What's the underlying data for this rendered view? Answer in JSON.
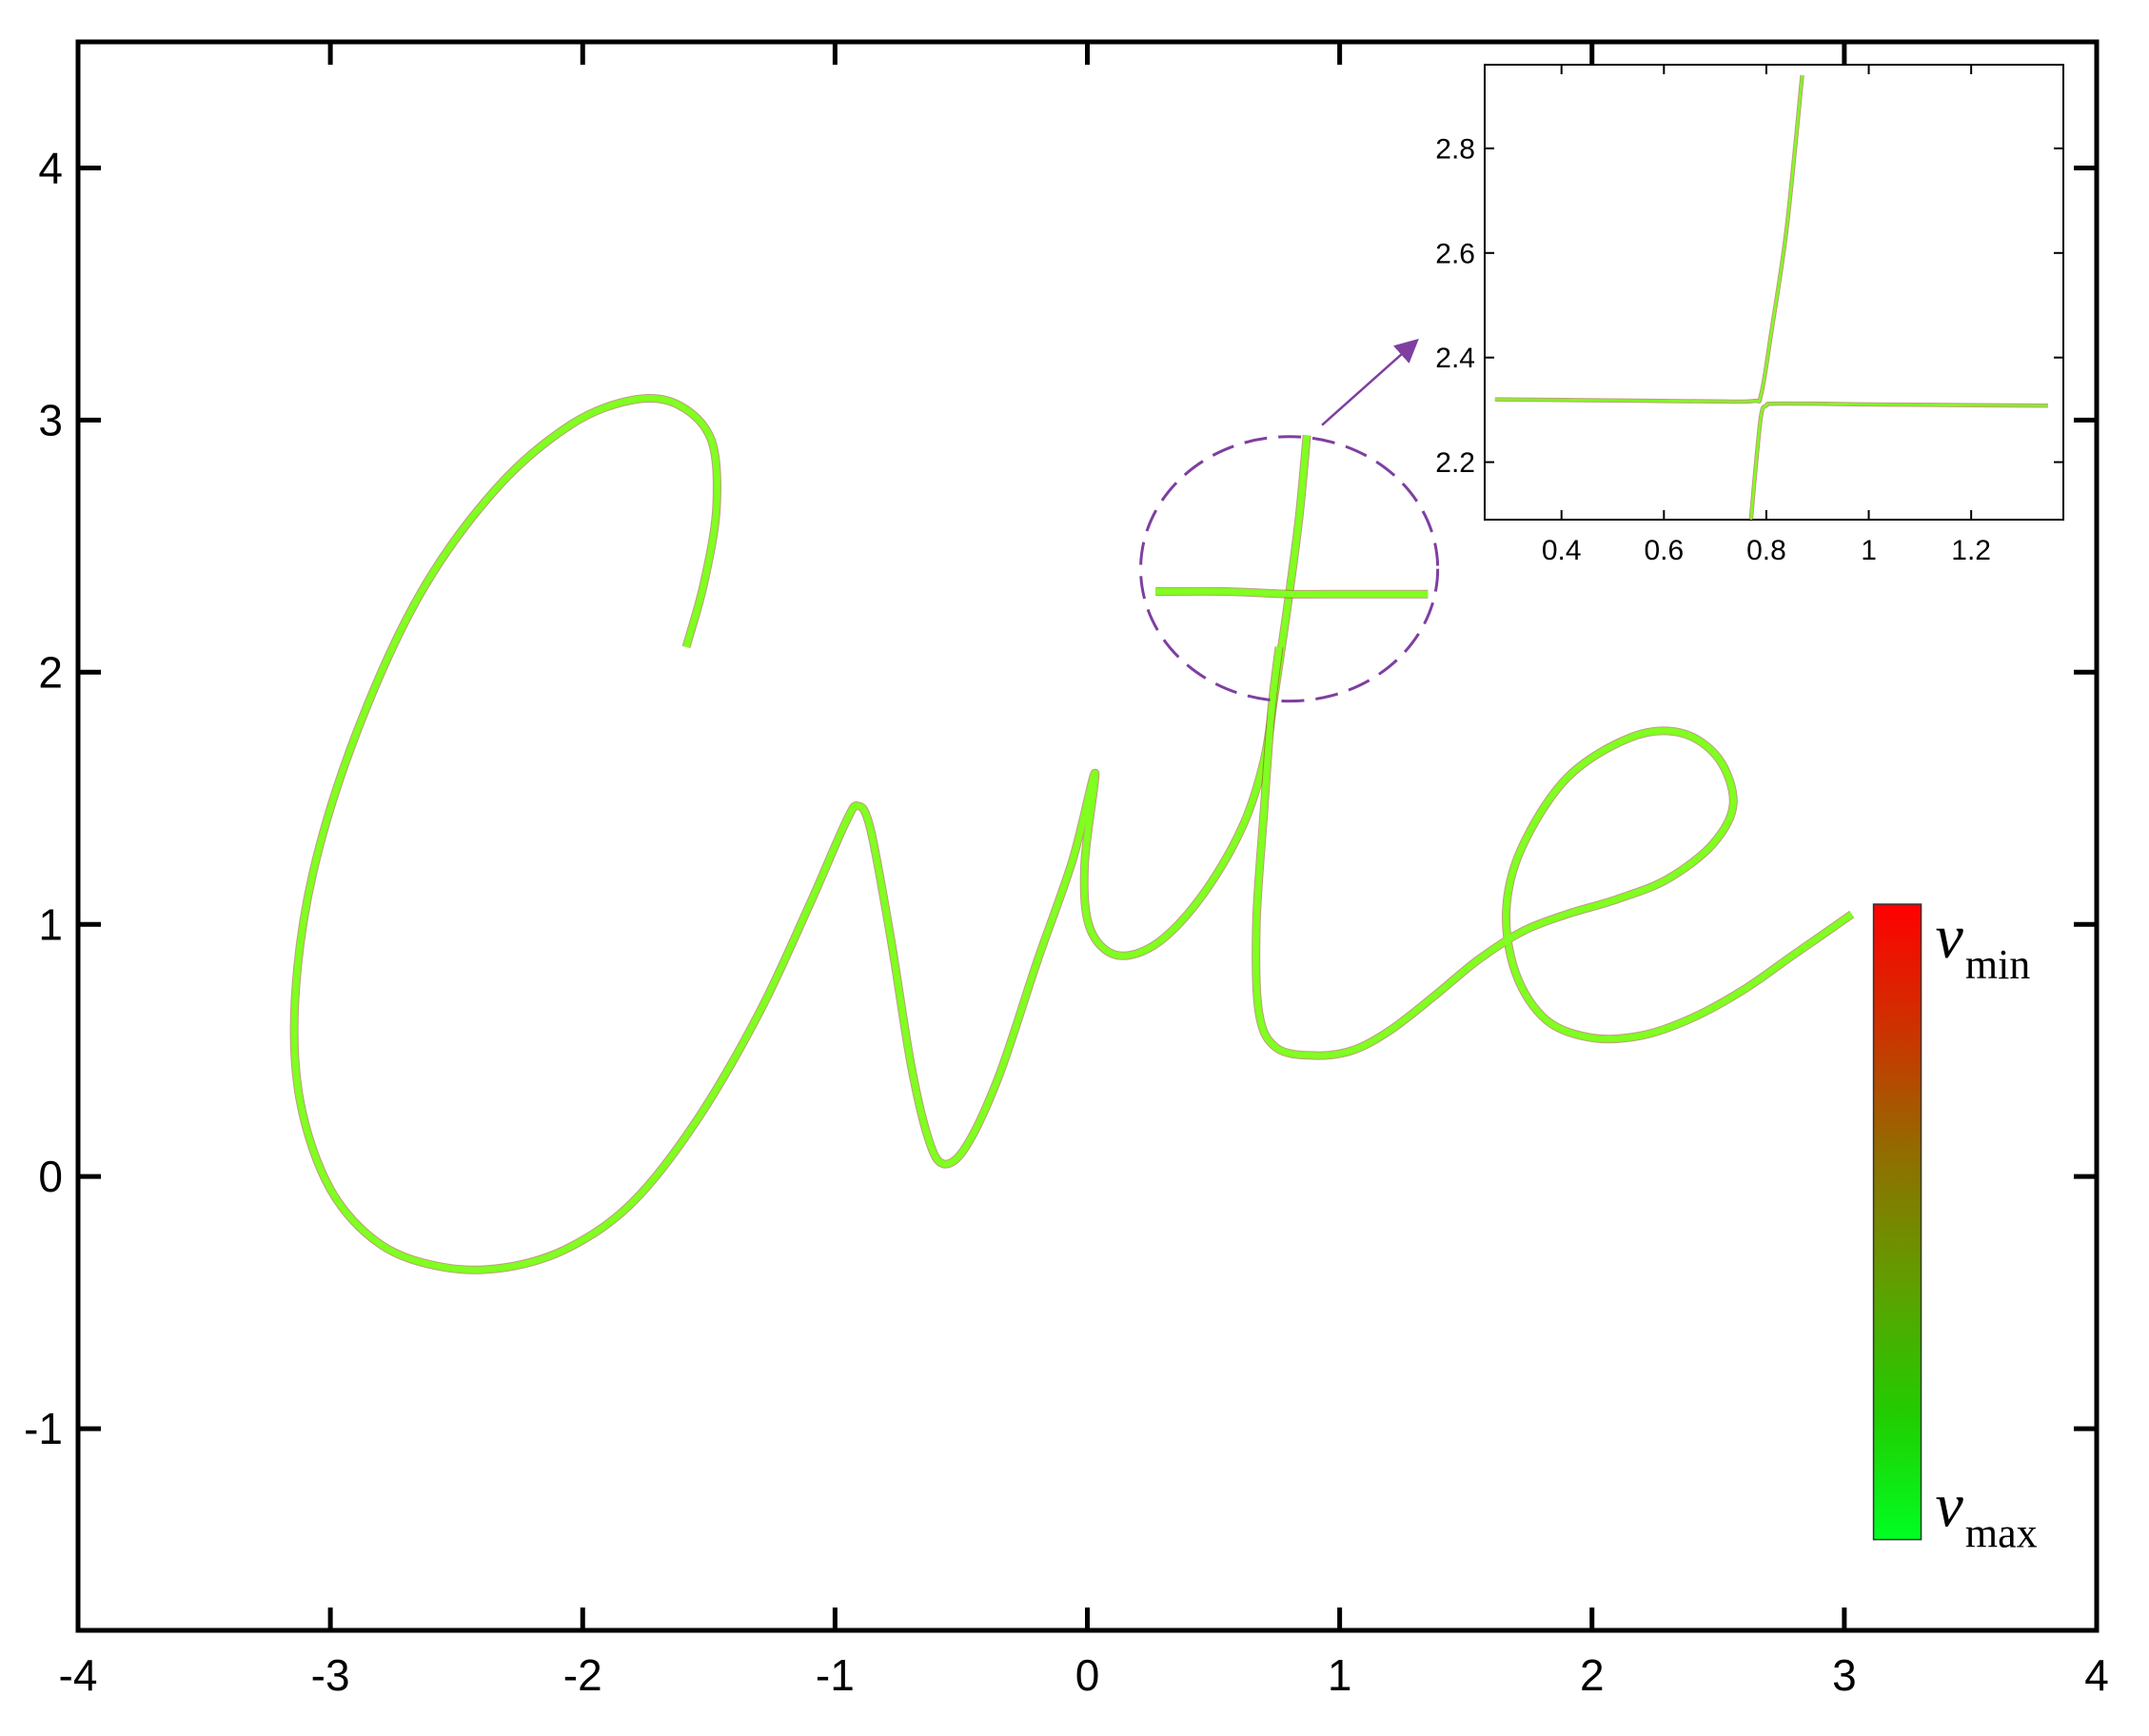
{
  "chart_data": [
    {
      "id": "main",
      "type": "line",
      "title": "",
      "xlabel": "",
      "ylabel": "",
      "xlim": [
        -4,
        4
      ],
      "ylim": [
        -1.8,
        4.5
      ],
      "xticks": [
        -4,
        -3,
        -2,
        -1,
        0,
        1,
        2,
        3,
        4
      ],
      "xtick_labels": [
        "-4",
        "-3",
        "-2",
        "-1",
        "0",
        "1",
        "2",
        "3",
        "4"
      ],
      "yticks": [
        -1,
        0,
        1,
        2,
        3,
        4
      ],
      "ytick_labels": [
        "-1",
        "0",
        "1",
        "2",
        "3",
        "4"
      ],
      "grid": false,
      "series": [
        {
          "color": "#80ff20",
          "points": [
            [
              -1.59,
              2.1
            ],
            [
              -1.52,
              2.35
            ],
            [
              -1.47,
              2.65
            ],
            [
              -1.49,
              2.92
            ],
            [
              -1.62,
              3.06
            ],
            [
              -1.8,
              3.08
            ],
            [
              -2.05,
              2.98
            ],
            [
              -2.35,
              2.72
            ],
            [
              -2.65,
              2.3
            ],
            [
              -2.9,
              1.75
            ],
            [
              -3.07,
              1.2
            ],
            [
              -3.14,
              0.7
            ],
            [
              -3.12,
              0.3
            ],
            [
              -3.0,
              -0.05
            ],
            [
              -2.8,
              -0.27
            ],
            [
              -2.55,
              -0.36
            ],
            [
              -2.3,
              -0.36
            ],
            [
              -2.05,
              -0.28
            ],
            [
              -1.8,
              -0.1
            ],
            [
              -1.55,
              0.22
            ],
            [
              -1.3,
              0.65
            ],
            [
              -1.1,
              1.08
            ],
            [
              -0.96,
              1.4
            ],
            [
              -0.91,
              1.47
            ],
            [
              -0.86,
              1.38
            ],
            [
              -0.78,
              0.95
            ],
            [
              -0.7,
              0.45
            ],
            [
              -0.63,
              0.15
            ],
            [
              -0.57,
              0.05
            ],
            [
              -0.48,
              0.12
            ],
            [
              -0.35,
              0.4
            ],
            [
              -0.2,
              0.85
            ],
            [
              -0.06,
              1.25
            ],
            [
              0.03,
              1.6
            ],
            [
              -0.01,
              1.25
            ],
            [
              0.0,
              1.02
            ],
            [
              0.07,
              0.9
            ],
            [
              0.18,
              0.88
            ],
            [
              0.32,
              0.96
            ],
            [
              0.48,
              1.15
            ],
            [
              0.62,
              1.4
            ],
            [
              0.7,
              1.65
            ],
            [
              0.74,
              1.9
            ],
            [
              0.77,
              2.1
            ],
            [
              0.8,
              2.31
            ],
            [
              0.84,
              2.62
            ],
            [
              0.87,
              2.94
            ]
          ]
        },
        {
          "color": "#80ff20",
          "points": [
            [
              0.76,
              2.1
            ],
            [
              0.73,
              1.85
            ],
            [
              0.7,
              1.45
            ],
            [
              0.67,
              1.0
            ],
            [
              0.68,
              0.65
            ],
            [
              0.75,
              0.51
            ],
            [
              0.9,
              0.48
            ],
            [
              1.05,
              0.5
            ],
            [
              1.2,
              0.58
            ],
            [
              1.38,
              0.72
            ],
            [
              1.55,
              0.86
            ],
            [
              1.72,
              0.97
            ],
            [
              1.9,
              1.04
            ],
            [
              2.1,
              1.1
            ],
            [
              2.3,
              1.18
            ],
            [
              2.48,
              1.32
            ],
            [
              2.56,
              1.48
            ],
            [
              2.5,
              1.66
            ],
            [
              2.35,
              1.76
            ],
            [
              2.15,
              1.74
            ],
            [
              1.9,
              1.58
            ],
            [
              1.72,
              1.3
            ],
            [
              1.66,
              1.05
            ],
            [
              1.7,
              0.8
            ],
            [
              1.82,
              0.62
            ],
            [
              2.0,
              0.55
            ],
            [
              2.2,
              0.56
            ],
            [
              2.4,
              0.63
            ],
            [
              2.6,
              0.74
            ],
            [
              2.8,
              0.88
            ],
            [
              3.03,
              1.04
            ]
          ]
        },
        {
          "color": "#80ff20",
          "points": [
            [
              0.27,
              2.32
            ],
            [
              0.55,
              2.32
            ],
            [
              0.8,
              2.31
            ],
            [
              1.05,
              2.31
            ],
            [
              1.35,
              2.31
            ]
          ]
        }
      ],
      "annotations": {
        "circle": {
          "cx": 0.8,
          "cy": 2.41,
          "r": 0.61,
          "color": "#7e3fa0",
          "dashed": true
        },
        "arrow": {
          "from": [
            0.93,
            2.98
          ],
          "to": [
            1.3,
            3.31
          ],
          "color": "#7e3fa0"
        }
      },
      "colorbar": {
        "x": 3.21,
        "y_top": 1.08,
        "y_bottom": -1.44,
        "colors": [
          "#ff0000",
          "#cc3300",
          "#8f6f00",
          "#5f9f00",
          "#22cc00",
          "#00ff22"
        ],
        "top_label": {
          "base": "v",
          "sub": "min"
        },
        "bottom_label": {
          "base": "v",
          "sub": "max"
        }
      }
    },
    {
      "id": "inset",
      "type": "line",
      "title": "",
      "xlabel": "",
      "ylabel": "",
      "xlim": [
        0.25,
        1.38
      ],
      "ylim": [
        2.09,
        2.96
      ],
      "xticks": [
        0.4,
        0.6,
        0.8,
        1.0,
        1.2
      ],
      "xtick_labels": [
        "0.4",
        "0.6",
        "0.8",
        "1",
        "1.2"
      ],
      "yticks": [
        2.2,
        2.4,
        2.6,
        2.8
      ],
      "ytick_labels": [
        "2.2",
        "2.4",
        "2.6",
        "2.8"
      ],
      "grid": false,
      "series": [
        {
          "color": "#80ff20",
          "points": [
            [
              0.27,
              2.32
            ],
            [
              0.5,
              2.318
            ],
            [
              0.7,
              2.316
            ],
            [
              0.775,
              2.317
            ],
            [
              0.79,
              2.33
            ],
            [
              0.81,
              2.45
            ],
            [
              0.84,
              2.65
            ],
            [
              0.87,
              2.94
            ]
          ]
        },
        {
          "color": "#80ff20",
          "points": [
            [
              0.77,
              2.09
            ],
            [
              0.78,
              2.2
            ],
            [
              0.79,
              2.29
            ],
            [
              0.8,
              2.308
            ],
            [
              0.83,
              2.312
            ],
            [
              1.05,
              2.31
            ],
            [
              1.35,
              2.308
            ]
          ]
        }
      ]
    }
  ]
}
